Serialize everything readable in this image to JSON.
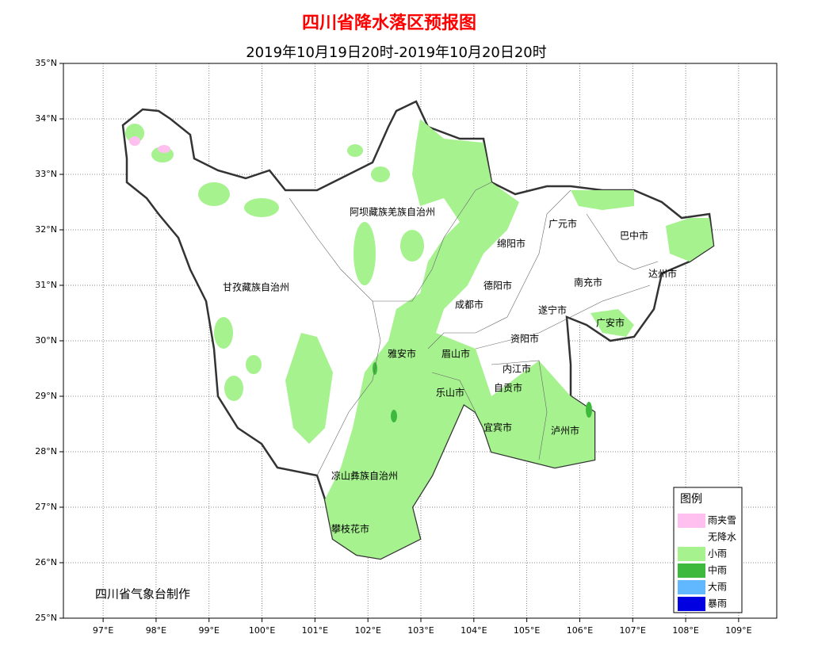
{
  "header": {
    "title": "四川省降水落区预报图",
    "subtitle": "2019年10月19日20时-2019年10月20日20时"
  },
  "map": {
    "xlim": [
      96.25,
      109.72
    ],
    "ylim": [
      25,
      35
    ],
    "xticks": [
      {
        "value": 97,
        "label": "97°E"
      },
      {
        "value": 98,
        "label": "98°E"
      },
      {
        "value": 99,
        "label": "99°E"
      },
      {
        "value": 100,
        "label": "100°E"
      },
      {
        "value": 101,
        "label": "101°E"
      },
      {
        "value": 102,
        "label": "102°E"
      },
      {
        "value": 103,
        "label": "103°E"
      },
      {
        "value": 104,
        "label": "104°E"
      },
      {
        "value": 105,
        "label": "105°E"
      },
      {
        "value": 106,
        "label": "106°E"
      },
      {
        "value": 107,
        "label": "107°E"
      },
      {
        "value": 108,
        "label": "108°E"
      },
      {
        "value": 109,
        "label": "109°E"
      }
    ],
    "yticks": [
      {
        "value": 25,
        "label": "25°N"
      },
      {
        "value": 26,
        "label": "26°N"
      },
      {
        "value": 27,
        "label": "27°N"
      },
      {
        "value": 28,
        "label": "28°N"
      },
      {
        "value": 29,
        "label": "29°N"
      },
      {
        "value": 30,
        "label": "30°N"
      },
      {
        "value": 31,
        "label": "31°N"
      },
      {
        "value": 32,
        "label": "32°N"
      },
      {
        "value": 33,
        "label": "33°N"
      },
      {
        "value": 34,
        "label": "34°N"
      },
      {
        "value": 35,
        "label": "35°N"
      }
    ],
    "regions": [
      "阿坝藏族羌族自治州",
      "广元市",
      "巴中市",
      "绵阳市",
      "达州市",
      "甘孜藏族自治州",
      "德阳市",
      "南充市",
      "成都市",
      "遂宁市",
      "广安市",
      "资阳市",
      "雅安市",
      "眉山市",
      "内江市",
      "自贡市",
      "乐山市",
      "宜宾市",
      "泸州市",
      "凉山彝族自治州",
      "攀枝花市"
    ],
    "credit": "四川省气象台制作"
  },
  "legend": {
    "title": "图例",
    "items": [
      {
        "label": "雨夹雪",
        "color": "#ffc0f0"
      },
      {
        "label": "无降水",
        "color": "#ffffff"
      },
      {
        "label": "小雨",
        "color": "#a6f28f"
      },
      {
        "label": "中雨",
        "color": "#3dba3d"
      },
      {
        "label": "大雨",
        "color": "#61b8ff"
      },
      {
        "label": "暴雨",
        "color": "#0000e1"
      }
    ]
  }
}
